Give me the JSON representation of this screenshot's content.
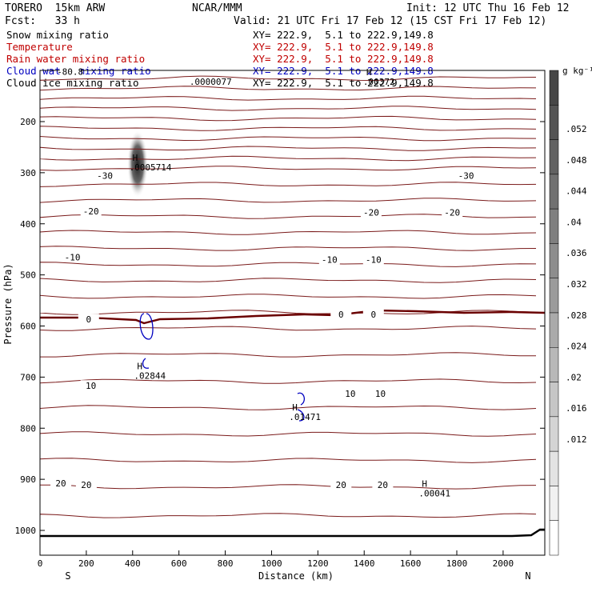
{
  "header": {
    "model": "TORERO  15km ARW",
    "org": "NCAR/MMM",
    "init": "Init: 12 UTC Thu 16 Feb 12",
    "fcst": "Fcst:   33 h",
    "valid": "Valid: 21 UTC Fri 17 Feb 12 (15 CST Fri 17 Feb 12)"
  },
  "legend": [
    {
      "name": "Snow mixing ratio",
      "range": "XY= 222.9,  5.1 to 222.9,149.8",
      "color": "#000000"
    },
    {
      "name": "Temperature",
      "range": "XY= 222.9,  5.1 to 222.9,149.8",
      "color": "#c00000"
    },
    {
      "name": "Rain water mixing ratio",
      "range": "XY= 222.9,  5.1 to 222.9,149.8",
      "color": "#c00000"
    },
    {
      "name": "Cloud water mixing ratio",
      "range": "XY= 222.9,  5.1 to 222.9,149.8",
      "color": "#0000c0"
    },
    {
      "name": "Cloud ice mixing ratio",
      "range": "XY= 222.9,  5.1 to 222.9,149.8",
      "color": "#000000"
    }
  ],
  "chart_data": {
    "type": "contour",
    "xlabel": "Distance (km)",
    "ylabel": "Pressure (hPa)",
    "xlim": [
      0,
      2180
    ],
    "ylim": [
      1020,
      100
    ],
    "x_ticks": [
      0,
      200,
      400,
      600,
      800,
      1000,
      1200,
      1400,
      1600,
      1800,
      2000
    ],
    "y_ticks": [
      200,
      300,
      400,
      500,
      600,
      700,
      800,
      900,
      1000
    ],
    "x_end_labels": {
      "left": "S",
      "right": "N"
    },
    "temperature_labels": [
      {
        "text": "-80.8",
        "x": 130,
        "p": 102
      },
      {
        "text": "-30",
        "x": 280,
        "p": 306
      },
      {
        "text": "-30",
        "x": 1840,
        "p": 306
      },
      {
        "text": "-20",
        "x": 220,
        "p": 375
      },
      {
        "text": "-20",
        "x": 1430,
        "p": 378
      },
      {
        "text": "-20",
        "x": 1780,
        "p": 378
      },
      {
        "text": "-10",
        "x": 140,
        "p": 465
      },
      {
        "text": "-10",
        "x": 1250,
        "p": 470
      },
      {
        "text": "-10",
        "x": 1440,
        "p": 470
      },
      {
        "text": "0",
        "x": 210,
        "p": 587
      },
      {
        "text": "0",
        "x": 1300,
        "p": 577
      },
      {
        "text": "0",
        "x": 1440,
        "p": 577
      },
      {
        "text": "10",
        "x": 220,
        "p": 717
      },
      {
        "text": "10",
        "x": 1340,
        "p": 732
      },
      {
        "text": "10",
        "x": 1470,
        "p": 732
      },
      {
        "text": "20",
        "x": 90,
        "p": 908
      },
      {
        "text": "20",
        "x": 200,
        "p": 911
      },
      {
        "text": "20",
        "x": 1300,
        "p": 911
      },
      {
        "text": "20",
        "x": 1480,
        "p": 911
      }
    ],
    "maxima_labels": [
      {
        "symbol": "H",
        "value": ".0005714",
        "x": 420,
        "p": 280,
        "color": "#000000"
      },
      {
        "symbol": "H",
        "value": ".02844",
        "x": 440,
        "p": 688,
        "color": "#0000c0"
      },
      {
        "symbol": "H",
        "value": ".01471",
        "x": 1110,
        "p": 768,
        "color": "#0000c0"
      },
      {
        "symbol": "H",
        "value": ".00041",
        "x": 1670,
        "p": 918,
        "color": "#0000c0"
      },
      {
        "symbol": "",
        "value": ".0000077",
        "x": 680,
        "p": 112,
        "color": "#000000"
      },
      {
        "symbol": "H",
        "value": ".00372",
        "x": 1430,
        "p": 112,
        "color": "#000000"
      }
    ],
    "colorbar": {
      "units": "g kg⁻¹",
      "labels": [
        ".052",
        ".048",
        ".044",
        ".04",
        ".036",
        ".032",
        ".028",
        ".024",
        ".02",
        ".016",
        ".012"
      ]
    },
    "colors": {
      "temperature": "#7a1a1a",
      "zero_isotherm": "#6a0000",
      "cloud_water": "#0000c0"
    }
  }
}
